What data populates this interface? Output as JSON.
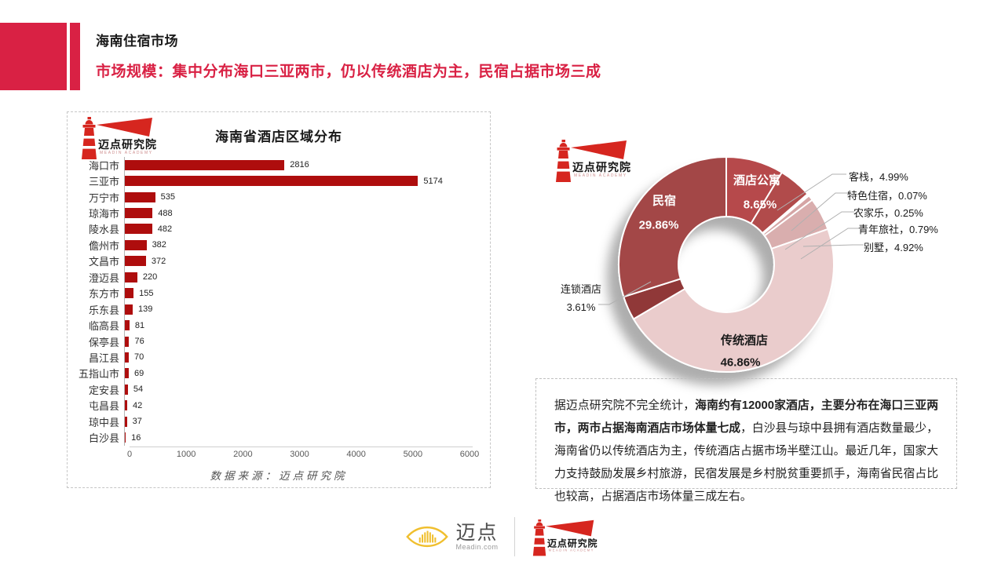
{
  "header": {
    "section_title": "海南住宿市场",
    "headline": "市场规模：集中分布海口三亚两市，仍以传统酒店为主，民宿占据市场三成"
  },
  "branding": {
    "academy_name": "迈点研究院",
    "academy_sub": "MEADIN ACADEMY",
    "meadin_name": "迈点",
    "meadin_sub": "Meadin.com"
  },
  "colors": {
    "accent": "#D92144",
    "bar": "#AE0D0D",
    "logo_red": "#D6261F"
  },
  "note": {
    "lead": "据迈点研究院不完全统计，",
    "bold": "海南约有12000家酒店，主要分布在海口三亚两市，两市占据海南酒店市场体量七成",
    "rest": "，白沙县与琼中县拥有酒店数量最少，海南省仍以传统酒店为主，传统酒店占据市场半壁江山。最近几年，国家大力支持鼓励发展乡村旅游，民宿发展是乡村脱贫重要抓手，海南省民宿占比也较高，占据酒店市场体量三成左右。"
  },
  "chart_data": [
    {
      "type": "bar",
      "orientation": "horizontal",
      "title": "海南省酒店区域分布",
      "categories": [
        "海口市",
        "三亚市",
        "万宁市",
        "琼海市",
        "陵水县",
        "儋州市",
        "文昌市",
        "澄迈县",
        "东方市",
        "乐东县",
        "临高县",
        "保亭县",
        "昌江县",
        "五指山市",
        "定安县",
        "屯昌县",
        "琼中县",
        "白沙县"
      ],
      "values": [
        2816,
        5174,
        535,
        488,
        482,
        382,
        372,
        220,
        155,
        139,
        81,
        76,
        70,
        69,
        54,
        42,
        37,
        16
      ],
      "xlim": [
        0,
        6000
      ],
      "x_ticks": [
        0,
        1000,
        2000,
        3000,
        4000,
        5000,
        6000
      ],
      "bar_color": "#AE0D0D",
      "grid": false,
      "source": "数据来源：迈点研究院"
    },
    {
      "type": "pie",
      "subtype": "donut",
      "unit": "%",
      "start_angle_deg": 0,
      "direction": "clockwise",
      "slices": [
        {
          "label": "酒店公寓",
          "value": 8.65,
          "color": "#B6494C",
          "label_position": "inside",
          "label_color": "#ffffff"
        },
        {
          "label": "客栈",
          "value": 4.99,
          "color": "#B14B4B",
          "label_position": "outside"
        },
        {
          "label": "特色住宿",
          "value": 0.07,
          "color": "#C98F8F",
          "label_position": "outside"
        },
        {
          "label": "农家乐",
          "value": 0.25,
          "color": "#E2BCBC",
          "label_position": "outside"
        },
        {
          "label": "青年旅社",
          "value": 0.79,
          "color": "#D5A5A5",
          "label_position": "outside"
        },
        {
          "label": "别墅",
          "value": 4.92,
          "color": "#D9AEAE",
          "label_position": "outside"
        },
        {
          "label": "传统酒店",
          "value": 46.86,
          "color": "#EACCCC",
          "label_position": "inside",
          "label_color": "#1a1a1a"
        },
        {
          "label": "连锁酒店",
          "value": 3.61,
          "color": "#903737",
          "label_position": "outside"
        },
        {
          "label": "民宿",
          "value": 29.86,
          "color": "#A34747",
          "label_position": "inside",
          "label_color": "#ffffff"
        }
      ]
    }
  ]
}
